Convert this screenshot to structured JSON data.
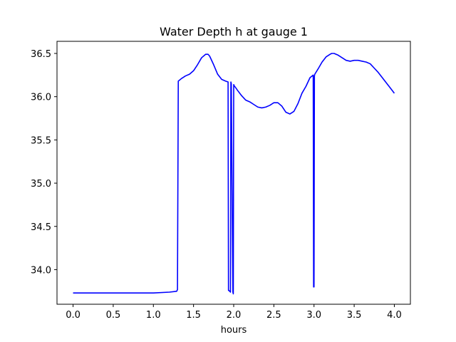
{
  "chart_data": {
    "type": "line",
    "title": "Water Depth h at gauge 1",
    "xlabel": "hours",
    "ylabel": "",
    "xlim": [
      -0.2,
      4.2
    ],
    "ylim": [
      33.6,
      36.64
    ],
    "grid": false,
    "legend": "none",
    "x_ticks": [
      {
        "value": 0.0,
        "label": "0.0"
      },
      {
        "value": 0.5,
        "label": "0.5"
      },
      {
        "value": 1.0,
        "label": "1.0"
      },
      {
        "value": 1.5,
        "label": "1.5"
      },
      {
        "value": 2.0,
        "label": "2.0"
      },
      {
        "value": 2.5,
        "label": "2.5"
      },
      {
        "value": 3.0,
        "label": "3.0"
      },
      {
        "value": 3.5,
        "label": "3.5"
      },
      {
        "value": 4.0,
        "label": "4.0"
      }
    ],
    "y_ticks": [
      {
        "value": 34.0,
        "label": "34.0"
      },
      {
        "value": 34.5,
        "label": "34.5"
      },
      {
        "value": 35.0,
        "label": "35.0"
      },
      {
        "value": 35.5,
        "label": "35.5"
      },
      {
        "value": 36.0,
        "label": "36.0"
      },
      {
        "value": 36.5,
        "label": "36.5"
      }
    ],
    "series": [
      {
        "color": "#0000ff",
        "x": [
          0.0,
          0.5,
          1.0,
          1.2,
          1.29,
          1.3,
          1.31,
          1.35,
          1.4,
          1.45,
          1.5,
          1.55,
          1.6,
          1.65,
          1.68,
          1.7,
          1.75,
          1.8,
          1.85,
          1.9,
          1.93,
          1.935,
          1.94,
          1.96,
          1.965,
          1.97,
          1.99,
          1.995,
          2.0,
          2.01,
          2.02,
          2.05,
          2.1,
          2.15,
          2.2,
          2.25,
          2.3,
          2.35,
          2.4,
          2.45,
          2.5,
          2.55,
          2.6,
          2.65,
          2.7,
          2.75,
          2.8,
          2.85,
          2.9,
          2.95,
          2.99,
          2.995,
          3.0,
          3.005,
          3.01,
          3.05,
          3.1,
          3.15,
          3.2,
          3.22,
          3.25,
          3.3,
          3.35,
          3.4,
          3.45,
          3.5,
          3.55,
          3.6,
          3.65,
          3.7,
          3.75,
          3.8,
          3.85,
          3.9,
          3.95,
          4.0
        ],
        "y": [
          33.73,
          33.73,
          33.73,
          33.74,
          33.75,
          33.77,
          36.18,
          36.21,
          36.24,
          36.26,
          36.3,
          36.37,
          36.45,
          36.49,
          36.49,
          36.47,
          36.37,
          36.26,
          36.2,
          36.18,
          36.17,
          33.76,
          33.76,
          33.74,
          36.17,
          36.15,
          33.74,
          33.72,
          36.14,
          36.12,
          36.11,
          36.07,
          36.01,
          35.96,
          35.94,
          35.91,
          35.88,
          35.87,
          35.88,
          35.9,
          35.93,
          35.93,
          35.89,
          35.82,
          35.8,
          35.83,
          35.92,
          36.04,
          36.12,
          36.22,
          36.25,
          33.8,
          33.8,
          36.24,
          36.26,
          36.32,
          36.4,
          36.46,
          36.49,
          36.5,
          36.5,
          36.48,
          36.45,
          36.42,
          36.41,
          36.42,
          36.42,
          36.41,
          36.4,
          36.38,
          36.33,
          36.28,
          36.22,
          36.16,
          36.1,
          36.04
        ]
      }
    ]
  }
}
